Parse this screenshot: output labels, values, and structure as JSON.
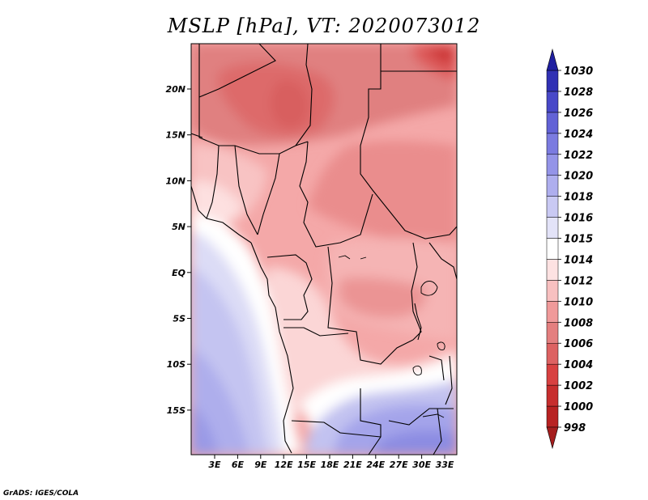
{
  "title": "MSLP [hPa], VT: 2020073012",
  "credit": "GrADS: IGES/COLA",
  "map": {
    "lon_labels": [
      "3E",
      "6E",
      "9E",
      "12E",
      "15E",
      "18E",
      "21E",
      "24E",
      "27E",
      "30E",
      "33E"
    ],
    "lat_labels": [
      "20N",
      "15N",
      "10N",
      "5N",
      "EQ",
      "5S",
      "10S",
      "15S"
    ]
  },
  "colorbar": {
    "levels": [
      "998",
      "1000",
      "1002",
      "1004",
      "1006",
      "1008",
      "1010",
      "1012",
      "1014",
      "1015",
      "1016",
      "1018",
      "1020",
      "1022",
      "1024",
      "1026",
      "1028",
      "1030"
    ],
    "colors": [
      "#a51d1d",
      "#b82222",
      "#c72e2e",
      "#d84141",
      "#dd6262",
      "#e47f7f",
      "#f09a9a",
      "#f8c0c0",
      "#fde2e2",
      "#ffffff",
      "#e3e3f8",
      "#c9c9f3",
      "#aeaeee",
      "#9494e8",
      "#7b7be0",
      "#6262d6",
      "#4848c8",
      "#3131b4",
      "#1f1fa0"
    ],
    "low_end_color": "#a51d1d",
    "high_end_color": "#1f1fa0"
  }
}
